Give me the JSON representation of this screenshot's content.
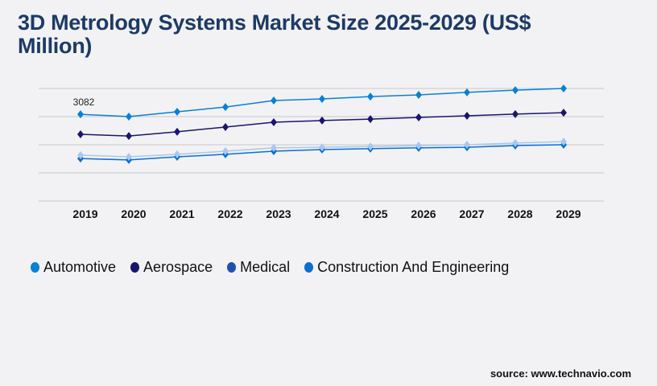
{
  "chart_data": {
    "type": "line",
    "title": "3D Metrology Systems Market Size 2025-2029 (US$ Million)",
    "xlabel": "",
    "ylabel": "",
    "categories": [
      "2019",
      "2020",
      "2021",
      "2022",
      "2023",
      "2024",
      "2025",
      "2026",
      "2027",
      "2028",
      "2029"
    ],
    "ylim": [
      0,
      4000
    ],
    "grid": true,
    "legend_position": "bottom",
    "annotations": [
      {
        "series": "Automotive",
        "x": "2019",
        "text": "3082"
      }
    ],
    "series": [
      {
        "name": "Automotive",
        "color": "#0a7fd6",
        "legend_color": "#0a7fd6",
        "values": [
          3082,
          3000,
          3170,
          3340,
          3570,
          3630,
          3710,
          3770,
          3860,
          3940,
          4000
        ]
      },
      {
        "name": "Aerospace",
        "color": "#1a1570",
        "legend_color": "#1a1570",
        "values": [
          2370,
          2310,
          2460,
          2630,
          2800,
          2860,
          2910,
          2970,
          3030,
          3090,
          3140
        ]
      },
      {
        "name": "Medical",
        "color": "#a8c8f0",
        "legend_color": "#1f4fb0",
        "values": [
          1630,
          1570,
          1660,
          1770,
          1890,
          1910,
          1940,
          1970,
          2000,
          2060,
          2110
        ]
      },
      {
        "name": "Construction And Engineering",
        "color": "#0b6fd0",
        "legend_color": "#0b6fd0",
        "values": [
          1510,
          1460,
          1570,
          1660,
          1770,
          1830,
          1860,
          1890,
          1910,
          1970,
          2000
        ]
      }
    ]
  },
  "source": "source: www.technavio.com"
}
